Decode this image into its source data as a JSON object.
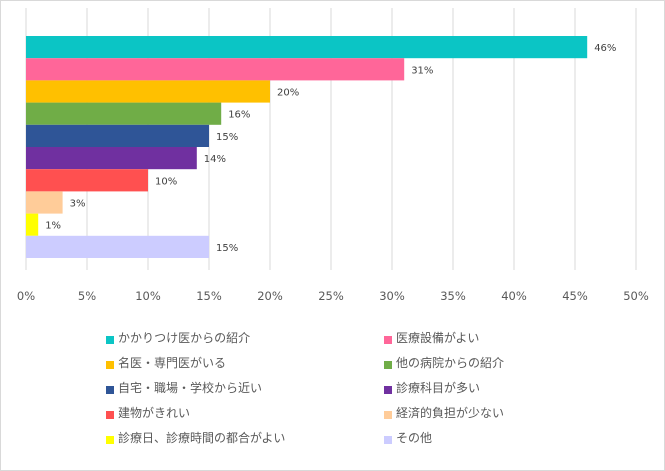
{
  "chart_data": {
    "type": "bar",
    "orientation": "horizontal",
    "title": "",
    "xlabel": "",
    "ylabel": "",
    "xlim": [
      0,
      50
    ],
    "xticks": [
      "0%",
      "5%",
      "10%",
      "15%",
      "20%",
      "25%",
      "30%",
      "35%",
      "40%",
      "45%",
      "50%"
    ],
    "grid": true,
    "legend_position": "bottom",
    "categories": [
      "かかりつけ医からの紹介",
      "医療設備がよい",
      "名医・専門医がいる",
      "他の病院からの紹介",
      "自宅・職場・学校から近い",
      "診療科目が多い",
      "建物がきれい",
      "経済的負担が少ない",
      "診療日、診療時間の都合がよい",
      "その他"
    ],
    "values": [
      46,
      31,
      20,
      16,
      15,
      14,
      10,
      3,
      1,
      15
    ],
    "labels": [
      "46%",
      "31%",
      "20%",
      "16%",
      "15%",
      "14%",
      "10%",
      "3%",
      "1%",
      "15%"
    ],
    "colors": [
      "#0BC5C5",
      "#FF6699",
      "#FFC000",
      "#70AD47",
      "#2F5597",
      "#7030A0",
      "#FF5050",
      "#FFCC99",
      "#FFFF00",
      "#CCCCFF"
    ]
  }
}
